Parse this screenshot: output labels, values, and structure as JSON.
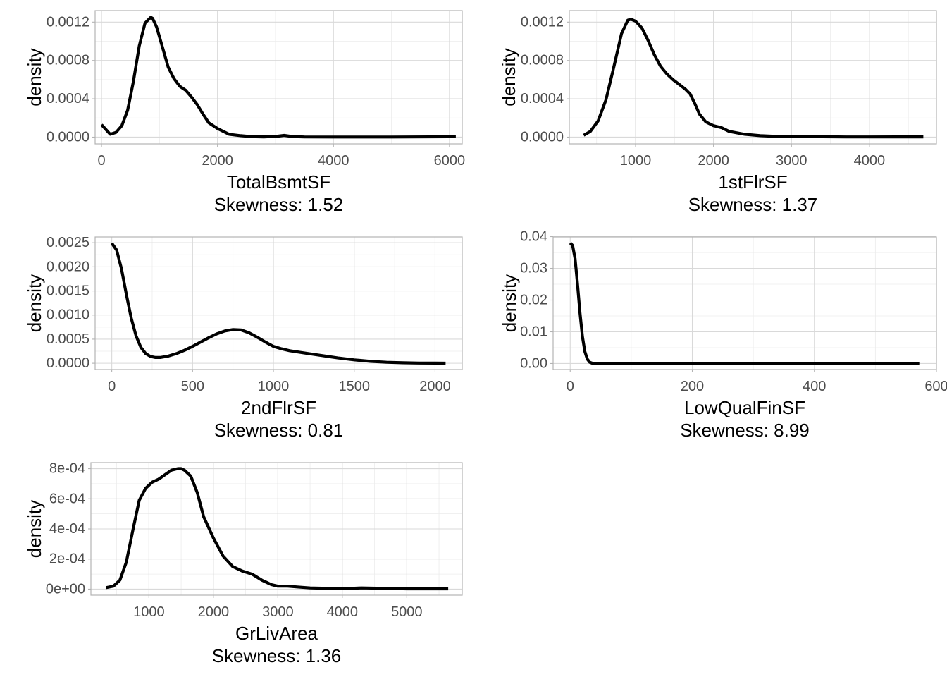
{
  "chart_data": [
    {
      "type": "line",
      "xlabel": "TotalBsmtSF",
      "subtitle": "Skewness: 1.52",
      "ylabel": "density",
      "xlim": [
        -110,
        6220
      ],
      "ylim": [
        -7e-05,
        0.00132
      ],
      "xticks": [
        0,
        2000,
        4000,
        6000
      ],
      "xtick_labels": [
        "0",
        "2000",
        "4000",
        "6000"
      ],
      "yticks": [
        0,
        0.0004,
        0.0008,
        0.0012
      ],
      "ytick_labels": [
        "0.0000",
        "0.0004",
        "0.0008",
        "0.0012"
      ],
      "minor_x": [
        1000,
        3000,
        5000
      ],
      "minor_y": [
        0.0002,
        0.0006,
        0.001
      ],
      "grid": true,
      "series": [
        {
          "x": [
            0,
            60,
            150,
            250,
            350,
            450,
            550,
            650,
            750,
            850,
            880,
            950,
            1050,
            1150,
            1250,
            1350,
            1450,
            1550,
            1650,
            1750,
            1850,
            2000,
            2200,
            2400,
            2600,
            2800,
            3000,
            3150,
            3300,
            3500,
            4000,
            5000,
            6110
          ],
          "values": [
            0.00013,
            9e-05,
            3e-05,
            5e-05,
            0.00012,
            0.00028,
            0.00058,
            0.00095,
            0.00119,
            0.00125,
            0.00124,
            0.00115,
            0.00094,
            0.00073,
            0.00061,
            0.00053,
            0.00049,
            0.00042,
            0.00034,
            0.00024,
            0.00015,
            9e-05,
            3e-05,
            1.5e-05,
            5e-06,
            3e-06,
            7e-06,
            1.8e-05,
            6e-06,
            2e-06,
            1e-06,
            1e-06,
            4e-06
          ]
        }
      ]
    },
    {
      "type": "line",
      "xlabel": "1stFlrSF",
      "subtitle": "Skewness: 1.37",
      "ylabel": "density",
      "xlim": [
        150,
        4860
      ],
      "ylim": [
        -7e-05,
        0.00132
      ],
      "xticks": [
        1000,
        2000,
        3000,
        4000
      ],
      "xtick_labels": [
        "1000",
        "2000",
        "3000",
        "4000"
      ],
      "yticks": [
        0,
        0.0004,
        0.0008,
        0.0012
      ],
      "ytick_labels": [
        "0.0000",
        "0.0004",
        "0.0008",
        "0.0012"
      ],
      "minor_x": [
        500,
        1500,
        2500,
        3500,
        4500
      ],
      "minor_y": [
        0.0002,
        0.0006,
        0.001
      ],
      "grid": true,
      "series": [
        {
          "x": [
            334,
            420,
            520,
            620,
            720,
            820,
            900,
            940,
            1000,
            1080,
            1160,
            1240,
            1320,
            1400,
            1480,
            1560,
            1640,
            1700,
            1760,
            1820,
            1900,
            2000,
            2100,
            2200,
            2400,
            2600,
            2800,
            3000,
            3200,
            3400,
            3700,
            4000,
            4692
          ],
          "values": [
            2e-05,
            6e-05,
            0.00017,
            0.00039,
            0.00073,
            0.00108,
            0.00122,
            0.00123,
            0.00121,
            0.00114,
            0.00101,
            0.00086,
            0.00074,
            0.00066,
            0.0006,
            0.00055,
            0.0005,
            0.00045,
            0.00035,
            0.00024,
            0.00016,
            0.00012,
            0.0001,
            6e-05,
            3e-05,
            1.5e-05,
            8e-06,
            5e-06,
            8e-06,
            4e-06,
            2e-06,
            2e-06,
            3e-06
          ]
        }
      ]
    },
    {
      "type": "line",
      "xlabel": "2ndFlrSF",
      "subtitle": "Skewness: 0.81",
      "ylabel": "density",
      "xlim": [
        -103,
        2168
      ],
      "ylim": [
        -0.00013,
        0.00262
      ],
      "xticks": [
        0,
        500,
        1000,
        1500,
        2000
      ],
      "xtick_labels": [
        "0",
        "500",
        "1000",
        "1500",
        "2000"
      ],
      "yticks": [
        0,
        0.0005,
        0.001,
        0.0015,
        0.002,
        0.0025
      ],
      "ytick_labels": [
        "0.0000",
        "0.0005",
        "0.0010",
        "0.0015",
        "0.0020",
        "0.0025"
      ],
      "minor_x": [
        250,
        750,
        1250,
        1750
      ],
      "minor_y": [
        0.00025,
        0.00075,
        0.00125,
        0.00175,
        0.00225
      ],
      "grid": true,
      "series": [
        {
          "x": [
            0,
            30,
            60,
            90,
            120,
            150,
            180,
            210,
            240,
            270,
            300,
            350,
            400,
            450,
            500,
            550,
            600,
            650,
            700,
            750,
            800,
            850,
            900,
            950,
            1000,
            1050,
            1100,
            1200,
            1300,
            1400,
            1500,
            1600,
            1700,
            1800,
            1900,
            2000,
            2065
          ],
          "values": [
            0.00249,
            0.00235,
            0.00196,
            0.00143,
            0.00094,
            0.00057,
            0.00033,
            0.0002,
            0.00014,
            0.00012,
            0.00012,
            0.00015,
            0.0002,
            0.00027,
            0.00035,
            0.00044,
            0.00053,
            0.00061,
            0.00067,
            0.0007,
            0.00069,
            0.00063,
            0.00054,
            0.00044,
            0.00035,
            0.0003,
            0.00026,
            0.00021,
            0.00016,
            0.00011,
            7e-05,
            4e-05,
            2e-05,
            1e-05,
            5e-06,
            3e-06,
            2e-06
          ]
        }
      ]
    },
    {
      "type": "line",
      "xlabel": "LowQualFinSF",
      "subtitle": "Skewness: 8.99",
      "ylabel": "density",
      "xlim": [
        -28,
        600
      ],
      "ylim": [
        -0.0019,
        0.0399
      ],
      "xticks": [
        0,
        200,
        400,
        600
      ],
      "xtick_labels": [
        "0",
        "200",
        "400",
        "600"
      ],
      "yticks": [
        0,
        0.01,
        0.02,
        0.03,
        0.04
      ],
      "ytick_labels": [
        "0.00",
        "0.01",
        "0.02",
        "0.03",
        "0.04"
      ],
      "minor_x": [
        100,
        300,
        500
      ],
      "minor_y": [
        0.005,
        0.015,
        0.025,
        0.035
      ],
      "grid": true,
      "series": [
        {
          "x": [
            0,
            4,
            8,
            12,
            16,
            20,
            24,
            28,
            32,
            36,
            40,
            60,
            80,
            100,
            150,
            200,
            250,
            300,
            350,
            400,
            450,
            500,
            550,
            572
          ],
          "values": [
            0.038,
            0.0372,
            0.033,
            0.025,
            0.016,
            0.0085,
            0.0038,
            0.0014,
            0.0004,
            0.0001,
            3e-05,
            2e-05,
            5e-05,
            3e-05,
            2e-05,
            4e-05,
            2e-05,
            3e-05,
            2e-05,
            6e-05,
            3e-05,
            2e-05,
            5e-05,
            1e-05
          ]
        }
      ]
    },
    {
      "type": "line",
      "xlabel": "GrLivArea",
      "subtitle": "Skewness: 1.36",
      "ylabel": "density",
      "xlim": [
        100,
        5860
      ],
      "ylim": [
        -4e-05,
        0.00084
      ],
      "xticks": [
        1000,
        2000,
        3000,
        4000,
        5000
      ],
      "xtick_labels": [
        "1000",
        "2000",
        "3000",
        "4000",
        "5000"
      ],
      "yticks": [
        0,
        0.0002,
        0.0004,
        0.0006,
        0.0008
      ],
      "ytick_labels": [
        "0e+00",
        "2e-04",
        "4e-04",
        "6e-04",
        "8e-04"
      ],
      "minor_x": [
        500,
        1500,
        2500,
        3500,
        4500,
        5500
      ],
      "minor_y": [
        0.0001,
        0.0003,
        0.0005,
        0.0007
      ],
      "grid": true,
      "series": [
        {
          "x": [
            334,
            450,
            550,
            650,
            750,
            850,
            950,
            1050,
            1150,
            1250,
            1350,
            1450,
            1500,
            1550,
            1650,
            1750,
            1850,
            2000,
            2150,
            2300,
            2450,
            2600,
            2750,
            2900,
            3000,
            3150,
            3300,
            3500,
            3800,
            4000,
            4300,
            4600,
            5000,
            5642
          ],
          "values": [
            1e-05,
            2e-05,
            6e-05,
            0.00018,
            0.00039,
            0.00059,
            0.00067,
            0.00071,
            0.00073,
            0.00076,
            0.00079,
            0.0008,
            0.0008,
            0.00079,
            0.00075,
            0.00064,
            0.00048,
            0.00034,
            0.00022,
            0.00015,
            0.00012,
            0.0001,
            6e-05,
            3e-05,
            2e-05,
            2e-05,
            1.5e-05,
            8e-06,
            5e-06,
            3e-06,
            8e-06,
            6e-06,
            2e-06,
            2e-06
          ]
        }
      ]
    }
  ]
}
